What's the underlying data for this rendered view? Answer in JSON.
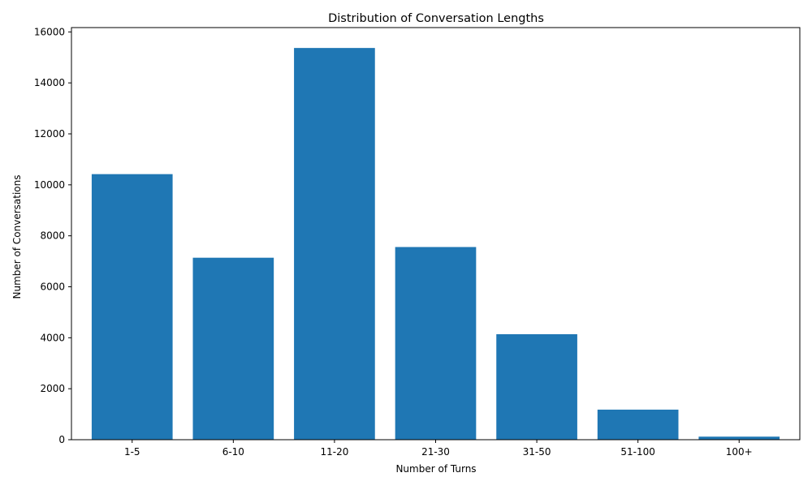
{
  "chart_data": {
    "type": "bar",
    "title": "Distribution of Conversation Lengths",
    "xlabel": "Number of Turns",
    "ylabel": "Number of Conversations",
    "categories": [
      "1-5",
      "6-10",
      "11-20",
      "21-30",
      "31-50",
      "51-100",
      "100+"
    ],
    "values": [
      10420,
      7140,
      15370,
      7560,
      4140,
      1180,
      120
    ],
    "ylim": [
      0,
      16170
    ],
    "yticks": [
      0,
      2000,
      4000,
      6000,
      8000,
      10000,
      12000,
      14000,
      16000
    ],
    "grid": false,
    "legend": "none",
    "bar_color": "#1f77b4"
  }
}
